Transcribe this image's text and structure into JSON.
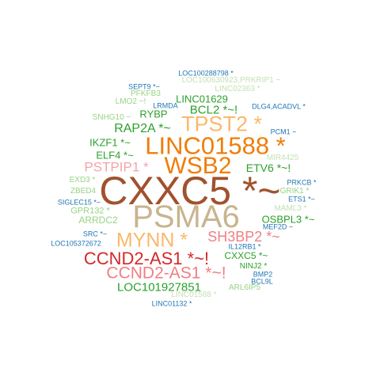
{
  "words": [
    {
      "text": "CXXC5 *~",
      "color": "#a0522d",
      "weight": 1.0
    },
    {
      "text": "PSMA6",
      "color": "#c8b48e",
      "weight": 0.92
    },
    {
      "text": "LINC01588 *",
      "color": "#f07d0a",
      "weight": 0.66
    },
    {
      "text": "WSB2",
      "color": "#f07d0a",
      "weight": 0.65
    },
    {
      "text": "TPST2 *",
      "color": "#f9b96b",
      "weight": 0.6
    },
    {
      "text": "MYNN *",
      "color": "#f9b96b",
      "weight": 0.52
    },
    {
      "text": "CCND2-AS1 *~!",
      "color": "#d62728",
      "weight": 0.48
    },
    {
      "text": "CCND2-AS1 *~!",
      "color": "#f07f83",
      "weight": 0.47
    },
    {
      "text": "SH3BP2 *~",
      "color": "#f07f83",
      "weight": 0.38
    },
    {
      "text": "PSTPIP1 *",
      "color": "#f4a3a8",
      "weight": 0.35
    },
    {
      "text": "RAP2A *~",
      "color": "#2ca02c",
      "weight": 0.32
    },
    {
      "text": "LOC101927851",
      "color": "#2ca02c",
      "weight": 0.31
    },
    {
      "text": "BCL2 *~!",
      "color": "#2ca02c",
      "weight": 0.3
    },
    {
      "text": "ETV6 *~!",
      "color": "#2ca02c",
      "weight": 0.28
    },
    {
      "text": "IKZF1 *~",
      "color": "#2ca02c",
      "weight": 0.26
    },
    {
      "text": "ELF4 *~",
      "color": "#2ca02c",
      "weight": 0.26
    },
    {
      "text": "OSBPL3 *~",
      "color": "#2ca02c",
      "weight": 0.25
    },
    {
      "text": "RYBP",
      "color": "#2ca02c",
      "weight": 0.25
    },
    {
      "text": "LINC01629",
      "color": "#2ca02c",
      "weight": 0.25
    },
    {
      "text": "CXXC5 *~",
      "color": "#2ca02c",
      "weight": 0.22
    },
    {
      "text": "ARRDC2",
      "color": "#98d383",
      "weight": 0.22
    },
    {
      "text": "GPR132 *",
      "color": "#98d383",
      "weight": 0.2
    },
    {
      "text": "LOC100630923,PRKRIP1 ~",
      "color": "#c5e0b4",
      "weight": 0.18
    },
    {
      "text": "LINC02363 *",
      "color": "#c5e0b4",
      "weight": 0.17
    },
    {
      "text": "LINC01588 *",
      "color": "#c5e0b4",
      "weight": 0.17
    },
    {
      "text": "MAML3 *",
      "color": "#c5e0b4",
      "weight": 0.17
    },
    {
      "text": "NINJ2 *",
      "color": "#2ca02c",
      "weight": 0.17
    },
    {
      "text": "ARL6IP5",
      "color": "#98d383",
      "weight": 0.16
    },
    {
      "text": "EXD3 *",
      "color": "#98d383",
      "weight": 0.16
    },
    {
      "text": "LMO2 ~!",
      "color": "#98d383",
      "weight": 0.16
    },
    {
      "text": "PFKFB3",
      "color": "#98d383",
      "weight": 0.16
    },
    {
      "text": "SNHG10 ~",
      "color": "#98d383",
      "weight": 0.15
    },
    {
      "text": "GRIK1 *",
      "color": "#98d383",
      "weight": 0.15
    },
    {
      "text": "ZBED4",
      "color": "#98d383",
      "weight": 0.15
    },
    {
      "text": "MIR4425",
      "color": "#c5e0b4",
      "weight": 0.15
    },
    {
      "text": "LOC100288798 *",
      "color": "#1f77b4",
      "weight": 0.13
    },
    {
      "text": "SEPT9 *~",
      "color": "#1f77b4",
      "weight": 0.13
    },
    {
      "text": "LRMDA",
      "color": "#1f77b4",
      "weight": 0.13
    },
    {
      "text": "DLG4,ACADVL *",
      "color": "#1f77b4",
      "weight": 0.13
    },
    {
      "text": "PCM1 ~",
      "color": "#1f77b4",
      "weight": 0.13
    },
    {
      "text": "PRKCB *",
      "color": "#1f77b4",
      "weight": 0.13
    },
    {
      "text": "ETS1 *~",
      "color": "#1f77b4",
      "weight": 0.13
    },
    {
      "text": "SIGLEC15 *~",
      "color": "#1f77b4",
      "weight": 0.13
    },
    {
      "text": "MEF2D ~",
      "color": "#1f77b4",
      "weight": 0.13
    },
    {
      "text": "SRC *~",
      "color": "#1f77b4",
      "weight": 0.13
    },
    {
      "text": "LOC105372672",
      "color": "#1f77b4",
      "weight": 0.13
    },
    {
      "text": "IL12RB1 *",
      "color": "#1f77b4",
      "weight": 0.13
    },
    {
      "text": "BMP2",
      "color": "#1f77b4",
      "weight": 0.13
    },
    {
      "text": "BCL9L",
      "color": "#1f77b4",
      "weight": 0.13
    },
    {
      "text": "LINC01132 *",
      "color": "#1f77b4",
      "weight": 0.13
    }
  ]
}
